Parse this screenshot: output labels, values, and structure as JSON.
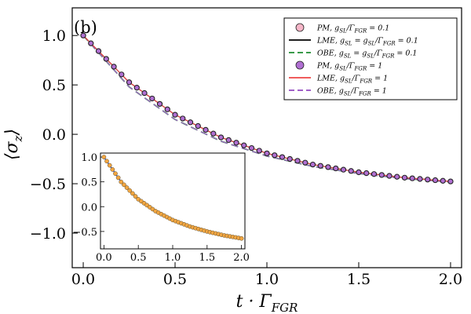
{
  "chart_data": {
    "type": "line",
    "panel_label": "(b)",
    "xlabel": "t · Γ_FGR",
    "ylabel": "⟨σ_z⟩",
    "xlim": [
      -0.06,
      2.06
    ],
    "ylim": [
      -1.35,
      1.28
    ],
    "xticks": [
      0.0,
      0.5,
      1.0,
      1.5,
      2.0
    ],
    "xtick_labels": [
      "0.0",
      "0.5",
      "1.0",
      "1.5",
      "2.0"
    ],
    "yticks": [
      -1.0,
      -0.5,
      0.0,
      0.5,
      1.0
    ],
    "ytick_labels": [
      "−1.0",
      "−0.5",
      "0.0",
      "0.5",
      "1.0"
    ],
    "grid": false,
    "legend_position": "top-right",
    "marker_x": [
      0.0,
      0.0417,
      0.0833,
      0.125,
      0.1667,
      0.2083,
      0.25,
      0.2917,
      0.3333,
      0.375,
      0.4167,
      0.4583,
      0.5,
      0.5417,
      0.5833,
      0.625,
      0.6667,
      0.7083,
      0.75,
      0.7917,
      0.8333,
      0.875,
      0.9167,
      0.9583,
      1.0,
      1.0417,
      1.0833,
      1.125,
      1.1667,
      1.2083,
      1.25,
      1.2917,
      1.3333,
      1.375,
      1.4167,
      1.4583,
      1.5,
      1.5417,
      1.5833,
      1.625,
      1.6667,
      1.7083,
      1.75,
      1.7917,
      1.8333,
      1.875,
      1.9167,
      1.9583,
      2.0
    ],
    "series": [
      {
        "name": "PM, g_SL/Γ_FGR = 0.1",
        "style": "marker",
        "color": "#f7b6c8",
        "x": [
          0.0,
          0.25,
          0.5,
          0.75,
          1.0,
          1.25,
          1.5,
          1.75,
          2.0
        ],
        "y": [
          1.0,
          0.527,
          0.198,
          -0.031,
          -0.193,
          -0.306,
          -0.384,
          -0.439,
          -0.477
        ]
      },
      {
        "name": "LME, g_SL = g_SL/Γ_FGR = 0.1",
        "style": "solid",
        "color": "#000000",
        "x": [
          0.0,
          0.25,
          0.5,
          0.75,
          1.0,
          1.25,
          1.5,
          1.75,
          2.0
        ],
        "y": [
          1.0,
          0.527,
          0.198,
          -0.031,
          -0.193,
          -0.306,
          -0.384,
          -0.439,
          -0.477
        ]
      },
      {
        "name": "OBE, g_SL = g_SL/Γ_FGR = 0.1",
        "style": "dashed",
        "color": "#3a9a4a",
        "x": [
          0.0,
          0.25,
          0.5,
          0.75,
          1.0,
          1.25,
          1.5,
          1.75,
          2.0
        ],
        "y": [
          1.0,
          0.48,
          0.15,
          -0.07,
          -0.22,
          -0.325,
          -0.397,
          -0.448,
          -0.483
        ]
      },
      {
        "name": "PM, g_SL/Γ_FGR = 1",
        "style": "marker",
        "color": "#b06fd2",
        "x": [
          0.0,
          0.25,
          0.5,
          0.75,
          1.0,
          1.25,
          1.5,
          1.75,
          2.0
        ],
        "y": [
          1.0,
          0.527,
          0.198,
          -0.031,
          -0.193,
          -0.306,
          -0.384,
          -0.439,
          -0.477
        ]
      },
      {
        "name": "LME, g_SL/Γ_FGR = 1",
        "style": "solid",
        "color": "#ee4444",
        "x": [
          0.0,
          0.25,
          0.5,
          0.75,
          1.0,
          1.25,
          1.5,
          1.75,
          2.0
        ],
        "y": [
          1.0,
          0.527,
          0.198,
          -0.031,
          -0.193,
          -0.306,
          -0.384,
          -0.439,
          -0.477
        ]
      },
      {
        "name": "OBE, g_SL/Γ_FGR = 1",
        "style": "dashed",
        "color": "#a060c8",
        "x": [
          0.0,
          0.25,
          0.5,
          0.75,
          1.0,
          1.25,
          1.5,
          1.75,
          2.0
        ],
        "y": [
          1.0,
          0.48,
          0.15,
          -0.07,
          -0.22,
          -0.325,
          -0.397,
          -0.448,
          -0.483
        ]
      }
    ],
    "legend": [
      {
        "series": 0,
        "prefix": "PM, g",
        "sub1": "SL",
        "mid": "/Γ",
        "sub2": "FGR",
        "suffix": " = 0.1",
        "color": "#f7b6c8",
        "style": "marker"
      },
      {
        "series": 1,
        "prefix": "LME, g",
        "sub1": "SL",
        "mid": " = g",
        "sub1b": "SL",
        "mid2": "/Γ",
        "sub2": "FGR",
        "suffix": " = 0.1",
        "color": "#000000",
        "style": "solid"
      },
      {
        "series": 2,
        "prefix": "OBE, g",
        "sub1": "SL",
        "mid": " = g",
        "sub1b": "SL",
        "mid2": "/Γ",
        "sub2": "FGR",
        "suffix": " = 0.1",
        "color": "#3a9a4a",
        "style": "dashed"
      },
      {
        "series": 3,
        "prefix": "PM, g",
        "sub1": "SL",
        "mid": "/Γ",
        "sub2": "FGR",
        "suffix": " = 1",
        "color": "#b06fd2",
        "style": "marker"
      },
      {
        "series": 4,
        "prefix": "LME, g",
        "sub1": "SL",
        "mid": "/Γ",
        "sub2": "FGR",
        "suffix": " = 1",
        "color": "#ee4444",
        "style": "solid"
      },
      {
        "series": 5,
        "prefix": "OBE, g",
        "sub1": "SL",
        "mid": "/Γ",
        "sub2": "FGR",
        "suffix": " = 1",
        "color": "#a060c8",
        "style": "dashed"
      }
    ],
    "inset": {
      "xlim": [
        -0.05,
        2.05
      ],
      "ylim": [
        -0.85,
        1.08
      ],
      "xticks": [
        0.0,
        0.5,
        1.0,
        1.5,
        2.0
      ],
      "xtick_labels": [
        "0.0",
        "0.5",
        "1.0",
        "1.5",
        "2.0"
      ],
      "yticks": [
        -0.5,
        0.0,
        0.5,
        1.0
      ],
      "ytick_labels": [
        "−0.5",
        "0.0",
        "0.5",
        "1.0"
      ],
      "marker_color": "#f2a641",
      "line_color": "#3355cc",
      "x": [
        0.0,
        0.25,
        0.5,
        0.75,
        1.0,
        1.25,
        1.5,
        1.75,
        2.0
      ],
      "y": [
        1.0,
        0.5,
        0.15,
        -0.09,
        -0.27,
        -0.4,
        -0.5,
        -0.58,
        -0.64
      ]
    }
  }
}
